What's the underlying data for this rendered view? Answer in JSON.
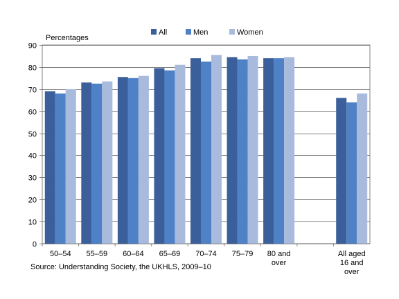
{
  "chart_data": {
    "type": "bar",
    "ylabel": "Percentages",
    "ylim": [
      0,
      90
    ],
    "yticks": [
      0,
      10,
      20,
      30,
      40,
      50,
      60,
      70,
      80,
      90
    ],
    "grid": true,
    "legend_position": "top",
    "categories": [
      [
        "50–54"
      ],
      [
        "55–59"
      ],
      [
        "60–64"
      ],
      [
        "65–69"
      ],
      [
        "70–74"
      ],
      [
        "75–79"
      ],
      [
        "80 and",
        "over"
      ],
      [],
      [
        "All aged",
        "16 and",
        "over"
      ]
    ],
    "series": [
      {
        "name": "All",
        "color": "#3b5f9a",
        "values": [
          69,
          73,
          75.5,
          79.5,
          84,
          84.5,
          84,
          null,
          66
        ]
      },
      {
        "name": "Men",
        "color": "#4f81c6",
        "values": [
          68,
          72.5,
          75,
          78.5,
          82.5,
          83.5,
          84,
          null,
          64
        ]
      },
      {
        "name": "Women",
        "color": "#a9bbdc",
        "values": [
          70,
          73.5,
          76,
          81,
          85.5,
          85,
          84.5,
          null,
          68
        ]
      }
    ]
  },
  "source": "Source: Understanding Society, the UKHLS, 2009–10"
}
